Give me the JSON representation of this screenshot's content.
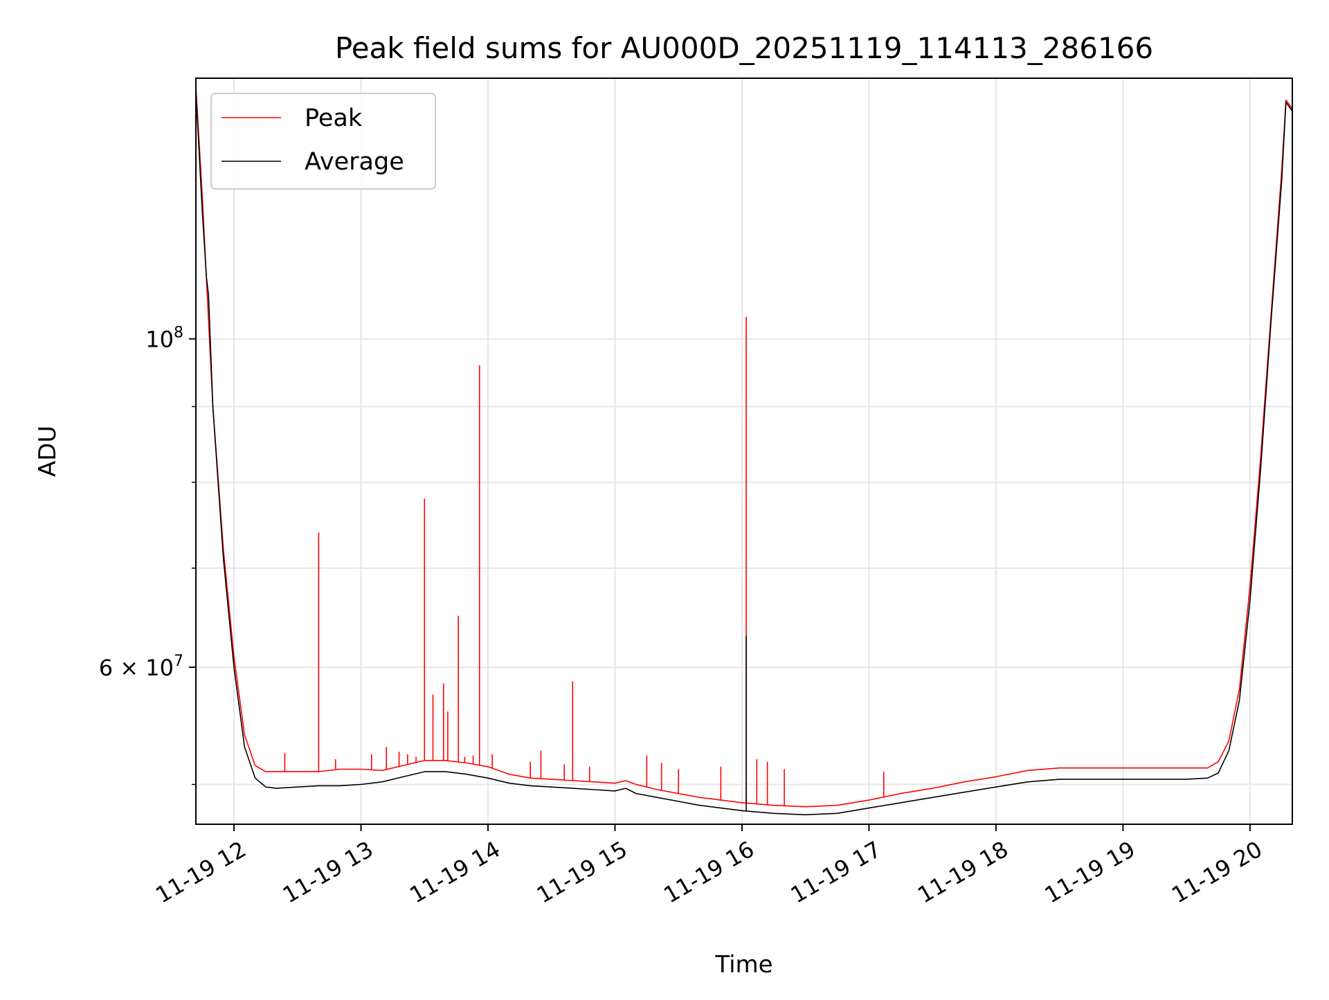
{
  "chart_data": {
    "type": "line",
    "title": "Peak field sums for AU000D_20251119_114113_286166",
    "xlabel": "Time",
    "ylabel": "ADU",
    "xscale": "time",
    "yscale": "log",
    "xlim": [
      "2025-11-19 11:42",
      "2025-11-19 20:20"
    ],
    "ylim": [
      47000000,
      150000000
    ],
    "grid": true,
    "legend_position": "top-left",
    "x_ticks": [
      {
        "label": "11-19 12",
        "value": "2025-11-19 12:00"
      },
      {
        "label": "11-19 13",
        "value": "2025-11-19 13:00"
      },
      {
        "label": "11-19 14",
        "value": "2025-11-19 14:00"
      },
      {
        "label": "11-19 15",
        "value": "2025-11-19 15:00"
      },
      {
        "label": "11-19 16",
        "value": "2025-11-19 16:00"
      },
      {
        "label": "11-19 17",
        "value": "2025-11-19 17:00"
      },
      {
        "label": "11-19 18",
        "value": "2025-11-19 18:00"
      },
      {
        "label": "11-19 19",
        "value": "2025-11-19 19:00"
      },
      {
        "label": "11-19 20",
        "value": "2025-11-19 20:00"
      }
    ],
    "y_major_ticks": [
      {
        "label_base": "10",
        "label_exp": "8",
        "value": 100000000
      },
      {
        "label_base": "6 × 10",
        "label_exp": "7",
        "value": 60000000
      }
    ],
    "y_minor_ticks": [
      50000000,
      70000000,
      80000000,
      90000000
    ],
    "series": [
      {
        "name": "Peak",
        "color": "#ff0000",
        "x": [
          "2025-11-19 11:42",
          "2025-11-19 11:45",
          "2025-11-19 11:50",
          "2025-11-19 11:55",
          "2025-11-19 12:00",
          "2025-11-19 12:05",
          "2025-11-19 12:10",
          "2025-11-19 12:15",
          "2025-11-19 12:20",
          "2025-11-19 12:30",
          "2025-11-19 12:40",
          "2025-11-19 12:50",
          "2025-11-19 13:00",
          "2025-11-19 13:10",
          "2025-11-19 13:20",
          "2025-11-19 13:30",
          "2025-11-19 13:40",
          "2025-11-19 13:50",
          "2025-11-19 14:00",
          "2025-11-19 14:10",
          "2025-11-19 14:20",
          "2025-11-19 14:30",
          "2025-11-19 14:40",
          "2025-11-19 14:50",
          "2025-11-19 15:00",
          "2025-11-19 15:05",
          "2025-11-19 15:10",
          "2025-11-19 15:20",
          "2025-11-19 15:30",
          "2025-11-19 15:40",
          "2025-11-19 15:50",
          "2025-11-19 16:00",
          "2025-11-19 16:15",
          "2025-11-19 16:30",
          "2025-11-19 16:45",
          "2025-11-19 17:00",
          "2025-11-19 17:15",
          "2025-11-19 17:30",
          "2025-11-19 17:45",
          "2025-11-19 18:00",
          "2025-11-19 18:15",
          "2025-11-19 18:30",
          "2025-11-19 18:45",
          "2025-11-19 19:00",
          "2025-11-19 19:15",
          "2025-11-19 19:30",
          "2025-11-19 19:40",
          "2025-11-19 19:45",
          "2025-11-19 19:50",
          "2025-11-19 19:55",
          "2025-11-19 20:00",
          "2025-11-19 20:05",
          "2025-11-19 20:10",
          "2025-11-19 20:15",
          "2025-11-19 20:17",
          "2025-11-19 20:20"
        ],
        "y": [
          148000000,
          125000000,
          90000000,
          72000000,
          61000000,
          54000000,
          51500000,
          51000000,
          51000000,
          51000000,
          51000000,
          51200000,
          51200000,
          51100000,
          51500000,
          51900000,
          51900000,
          51700000,
          51400000,
          50800000,
          50500000,
          50400000,
          50300000,
          50200000,
          50100000,
          50300000,
          50000000,
          49600000,
          49300000,
          49000000,
          48800000,
          48600000,
          48400000,
          48300000,
          48400000,
          48800000,
          49300000,
          49700000,
          50200000,
          50600000,
          51100000,
          51300000,
          51300000,
          51300000,
          51300000,
          51300000,
          51300000,
          51800000,
          53500000,
          58000000,
          68000000,
          83000000,
          104000000,
          130000000,
          145000000,
          143000000
        ],
        "spikes": [
          {
            "x": "2025-11-19 12:24",
            "y": 52500000
          },
          {
            "x": "2025-11-19 12:40",
            "y": 74000000
          },
          {
            "x": "2025-11-19 12:48",
            "y": 52000000
          },
          {
            "x": "2025-11-19 13:05",
            "y": 52400000
          },
          {
            "x": "2025-11-19 13:12",
            "y": 53000000
          },
          {
            "x": "2025-11-19 13:18",
            "y": 52600000
          },
          {
            "x": "2025-11-19 13:22",
            "y": 52400000
          },
          {
            "x": "2025-11-19 13:26",
            "y": 52200000
          },
          {
            "x": "2025-11-19 13:30",
            "y": 78000000
          },
          {
            "x": "2025-11-19 13:34",
            "y": 57500000
          },
          {
            "x": "2025-11-19 13:39",
            "y": 58500000
          },
          {
            "x": "2025-11-19 13:41",
            "y": 56000000
          },
          {
            "x": "2025-11-19 13:46",
            "y": 65000000
          },
          {
            "x": "2025-11-19 13:49",
            "y": 52200000
          },
          {
            "x": "2025-11-19 13:53",
            "y": 52300000
          },
          {
            "x": "2025-11-19 13:56",
            "y": 96000000
          },
          {
            "x": "2025-11-19 14:02",
            "y": 52400000
          },
          {
            "x": "2025-11-19 14:20",
            "y": 51800000
          },
          {
            "x": "2025-11-19 14:25",
            "y": 52700000
          },
          {
            "x": "2025-11-19 14:36",
            "y": 51600000
          },
          {
            "x": "2025-11-19 14:40",
            "y": 58700000
          },
          {
            "x": "2025-11-19 14:48",
            "y": 51400000
          },
          {
            "x": "2025-11-19 15:15",
            "y": 52300000
          },
          {
            "x": "2025-11-19 15:22",
            "y": 51700000
          },
          {
            "x": "2025-11-19 15:30",
            "y": 51200000
          },
          {
            "x": "2025-11-19 15:50",
            "y": 51400000
          },
          {
            "x": "2025-11-19 16:02",
            "y": 103500000
          },
          {
            "x": "2025-11-19 16:07",
            "y": 52000000
          },
          {
            "x": "2025-11-19 16:12",
            "y": 51800000
          },
          {
            "x": "2025-11-19 16:20",
            "y": 51200000
          },
          {
            "x": "2025-11-19 17:07",
            "y": 51000000
          }
        ]
      },
      {
        "name": "Average",
        "color": "#000000",
        "x": [
          "2025-11-19 11:42",
          "2025-11-19 11:45",
          "2025-11-19 11:47",
          "2025-11-19 11:48",
          "2025-11-19 11:50",
          "2025-11-19 11:55",
          "2025-11-19 12:00",
          "2025-11-19 12:05",
          "2025-11-19 12:10",
          "2025-11-19 12:15",
          "2025-11-19 12:20",
          "2025-11-19 12:30",
          "2025-11-19 12:40",
          "2025-11-19 12:50",
          "2025-11-19 13:00",
          "2025-11-19 13:10",
          "2025-11-19 13:20",
          "2025-11-19 13:30",
          "2025-11-19 13:40",
          "2025-11-19 13:50",
          "2025-11-19 14:00",
          "2025-11-19 14:10",
          "2025-11-19 14:20",
          "2025-11-19 14:30",
          "2025-11-19 14:40",
          "2025-11-19 14:50",
          "2025-11-19 15:00",
          "2025-11-19 15:05",
          "2025-11-19 15:10",
          "2025-11-19 15:20",
          "2025-11-19 15:30",
          "2025-11-19 15:40",
          "2025-11-19 15:50",
          "2025-11-19 16:00",
          "2025-11-19 16:15",
          "2025-11-19 16:30",
          "2025-11-19 16:45",
          "2025-11-19 17:00",
          "2025-11-19 17:15",
          "2025-11-19 17:30",
          "2025-11-19 17:45",
          "2025-11-19 18:00",
          "2025-11-19 18:15",
          "2025-11-19 18:30",
          "2025-11-19 18:45",
          "2025-11-19 19:00",
          "2025-11-19 19:15",
          "2025-11-19 19:30",
          "2025-11-19 19:40",
          "2025-11-19 19:45",
          "2025-11-19 19:50",
          "2025-11-19 19:55",
          "2025-11-19 20:00",
          "2025-11-19 20:05",
          "2025-11-19 20:10",
          "2025-11-19 20:15",
          "2025-11-19 20:17",
          "2025-11-19 20:20"
        ],
        "y": [
          147000000,
          122000000,
          110000000,
          107000000,
          90000000,
          71000000,
          60000000,
          53000000,
          50500000,
          49800000,
          49700000,
          49800000,
          49900000,
          49900000,
          50000000,
          50200000,
          50600000,
          51000000,
          51000000,
          50800000,
          50500000,
          50100000,
          49900000,
          49800000,
          49700000,
          49600000,
          49500000,
          49700000,
          49300000,
          49000000,
          48700000,
          48400000,
          48200000,
          48000000,
          47800000,
          47700000,
          47800000,
          48200000,
          48600000,
          49000000,
          49400000,
          49800000,
          50200000,
          50400000,
          50400000,
          50400000,
          50400000,
          50400000,
          50500000,
          50900000,
          52700000,
          57000000,
          66500000,
          81500000,
          103000000,
          128000000,
          144500000,
          142500000
        ],
        "spikes": [
          {
            "x": "2025-11-19 16:02",
            "y": 63000000
          }
        ]
      }
    ]
  }
}
